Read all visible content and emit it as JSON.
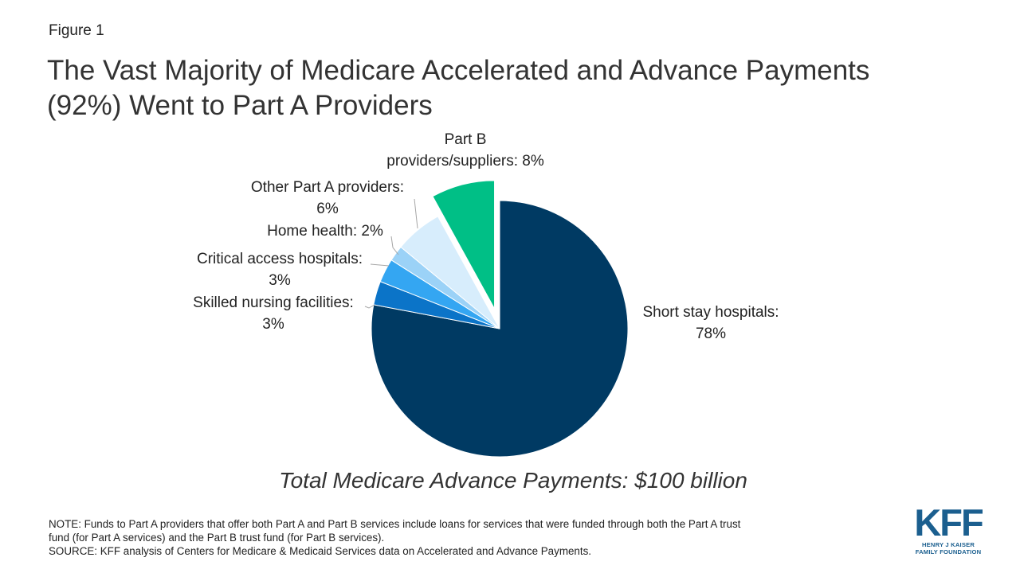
{
  "figure_label": "Figure 1",
  "title_line1": "The Vast Majority of Medicare Accelerated and Advance Payments",
  "title_line2": "(92%) Went to Part A Providers",
  "total_text": "Total Medicare Advance Payments: $100 billion",
  "note_line1": "NOTE: Funds to Part A providers that offer both Part A and Part B services include loans for services that were funded through both the Part A trust",
  "note_line2": "fund (for Part A services) and the Part B trust fund (for Part B services).",
  "source_line": "SOURCE: KFF analysis of Centers for Medicare & Medicaid Services data on Accelerated and Advance Payments.",
  "logo": {
    "mark": "KFF",
    "sub1": "HENRY J KAISER",
    "sub2": "FAMILY FOUNDATION"
  },
  "chart_data": {
    "type": "pie",
    "title": "The Vast Majority of Medicare Accelerated and Advance Payments (92%) Went to Part A Providers",
    "unit": "%",
    "exploded": [
      "Part B providers/suppliers"
    ],
    "slices": [
      {
        "name": "Short stay hospitals",
        "value": 78,
        "color": "#003a63",
        "label_lines": [
          "Short stay hospitals:",
          "78%"
        ]
      },
      {
        "name": "Skilled nursing facilities",
        "value": 3,
        "color": "#0b74c8",
        "label_lines": [
          "Skilled nursing facilities:",
          "3%"
        ]
      },
      {
        "name": "Critical access hospitals",
        "value": 3,
        "color": "#34a6f2",
        "label_lines": [
          "Critical access hospitals:",
          "3%"
        ]
      },
      {
        "name": "Home health",
        "value": 2,
        "color": "#9bd2f7",
        "label_lines": [
          "Home health: 2%"
        ]
      },
      {
        "name": "Other Part A providers",
        "value": 6,
        "color": "#d7edfc",
        "label_lines": [
          "Other Part A providers:",
          "6%"
        ]
      },
      {
        "name": "Part B providers/suppliers",
        "value": 8,
        "color": "#00bf86",
        "label_lines": [
          "Part B",
          "providers/suppliers: 8%"
        ]
      }
    ]
  }
}
